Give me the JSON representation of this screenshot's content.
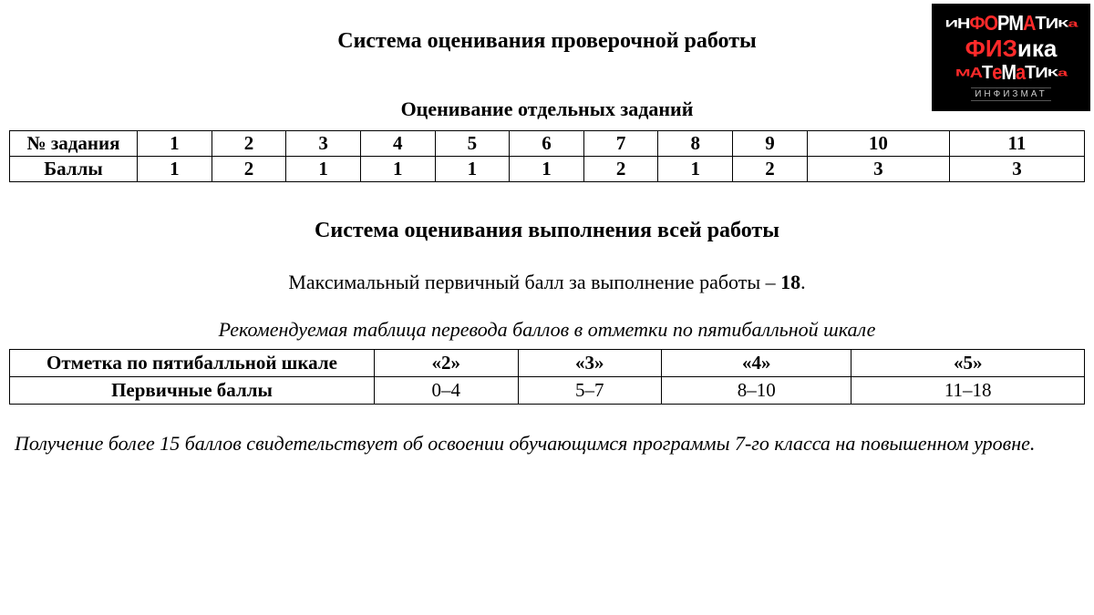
{
  "logo": {
    "line1_letters": [
      "И",
      "Н",
      "Ф",
      "О",
      "Р",
      "М",
      "А",
      "Т",
      "И",
      "К",
      "а"
    ],
    "line2_letters": [
      "Ф",
      "И",
      "З",
      "и",
      "к",
      "а"
    ],
    "line3_letters": [
      "М",
      "А",
      "Т",
      "е",
      "М",
      "а",
      "Т",
      "И",
      "К",
      "а"
    ],
    "caption": "ИНФИЗМАТ",
    "bg": "#000000",
    "red": "#ff2a2a",
    "white": "#ffffff"
  },
  "title": "Система оценивания проверочной работы",
  "tasks_subtitle": "Оценивание отдельных заданий",
  "tasks_table": {
    "row_labels": [
      "№ задания",
      "Баллы"
    ],
    "task_numbers": [
      "1",
      "2",
      "3",
      "4",
      "5",
      "6",
      "7",
      "8",
      "9",
      "10",
      "11"
    ],
    "points": [
      "1",
      "2",
      "1",
      "1",
      "1",
      "1",
      "2",
      "1",
      "2",
      "3",
      "3"
    ],
    "border_color": "#000000",
    "font_size": 21
  },
  "section_title": "Система оценивания выполнения всей работы",
  "max_score": {
    "text": "Максимальный первичный балл за выполнение работы – ",
    "value": "18",
    "suffix": "."
  },
  "conversion_caption": "Рекомендуемая таблица перевода баллов в отметки по пятибалльной шкале",
  "grades_table": {
    "row_labels": [
      "Отметка по пятибалльной шкале",
      "Первичные баллы"
    ],
    "marks": [
      "«2»",
      "«3»",
      "«4»",
      "«5»"
    ],
    "ranges": [
      "0–4",
      "5–7",
      "8–10",
      "11–18"
    ],
    "border_color": "#000000",
    "font_size": 21
  },
  "note": "Получение более 15 баллов свидетельствует об освоении обучающимся программы 7-го класса на повышенном уровне.",
  "colors": {
    "background": "#ffffff",
    "text": "#000000"
  },
  "typography": {
    "family": "Times New Roman",
    "title_size": 24,
    "body_size": 22
  }
}
